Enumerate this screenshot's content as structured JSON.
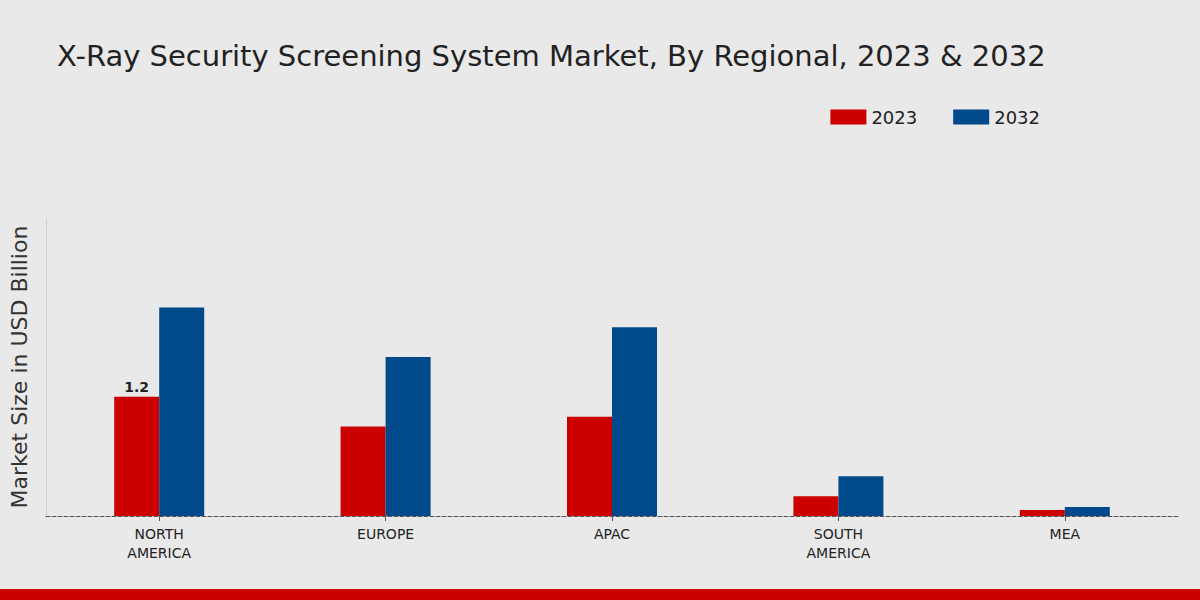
{
  "chart_data": {
    "type": "bar",
    "title": "X-Ray Security Screening System Market, By Regional, 2023 & 2032",
    "y_label": "Market Size in USD Billion",
    "categories": [
      "NORTH\nAMERICA",
      "EUROPE",
      "APAC",
      "SOUTH\nAMERICA",
      "MEA"
    ],
    "series": [
      {
        "name": "2023",
        "color": "#cc0000",
        "values": [
          1.2,
          0.9,
          1.0,
          0.2,
          0.06
        ],
        "value_labels": [
          "1.2",
          null,
          null,
          null,
          null
        ]
      },
      {
        "name": "2032",
        "color": "#004a8c",
        "values": [
          2.1,
          1.6,
          1.9,
          0.4,
          0.09
        ]
      }
    ],
    "ylim": [
      0,
      3
    ],
    "legend": "top-right",
    "data_labels": true,
    "tick_labels": "x",
    "grid": false
  }
}
